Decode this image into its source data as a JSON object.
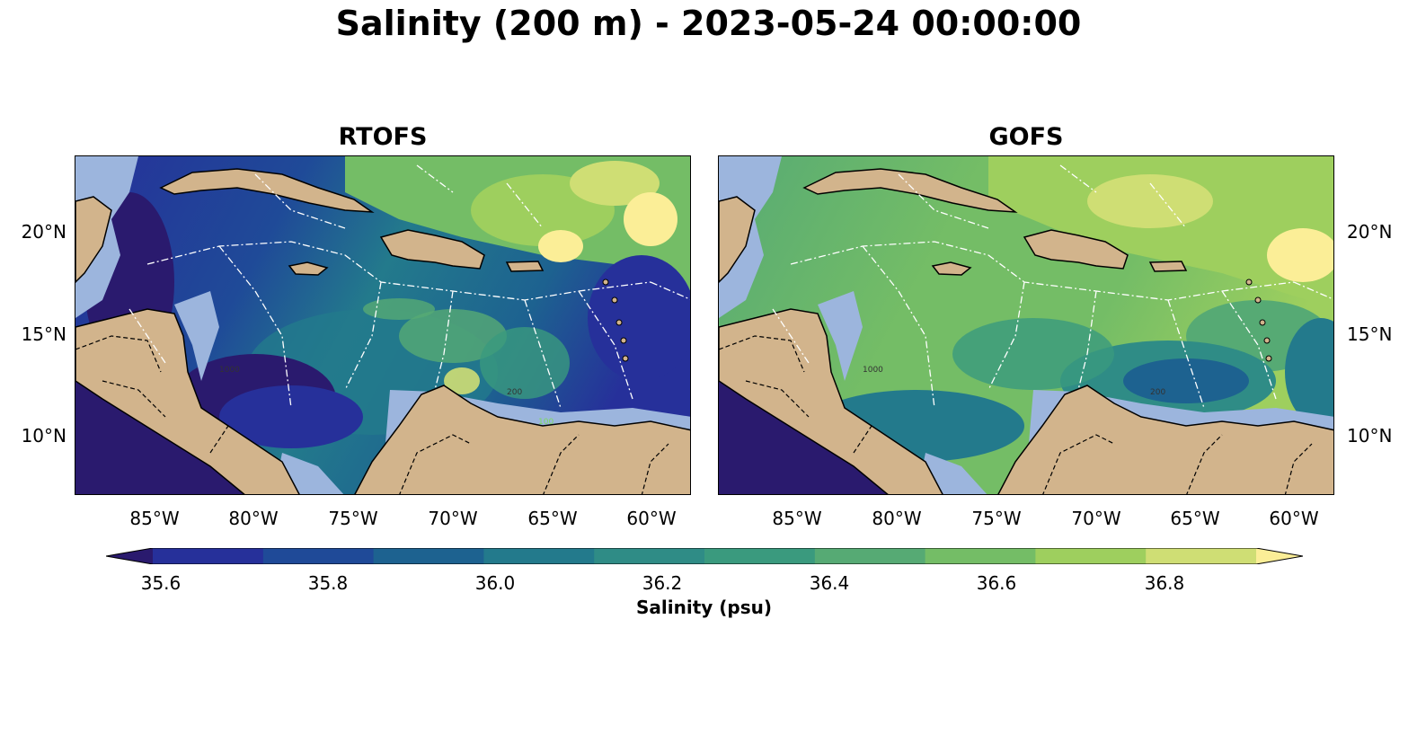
{
  "title": "Salinity (200 m) - 2023-05-24 00:00:00",
  "panels": [
    {
      "name": "RTOFS",
      "variant": "low"
    },
    {
      "name": "GOFS",
      "variant": "high"
    }
  ],
  "lat_ticks": [
    "20°N",
    "15°N",
    "10°N"
  ],
  "lon_ticks": [
    "85°W",
    "80°W",
    "75°W",
    "70°W",
    "65°W",
    "60°W"
  ],
  "colorbar": {
    "label": "Salinity (psu)",
    "ticks": [
      "35.6",
      "35.8",
      "36.0",
      "36.2",
      "36.4",
      "36.6",
      "36.8"
    ],
    "colors": [
      "#2a1a6e",
      "#26309a",
      "#1f4a98",
      "#1d6290",
      "#237a8c",
      "#2f8c86",
      "#3a9a7e",
      "#56aa74",
      "#74bd66",
      "#9ecf5e",
      "#cfde74",
      "#fbee97"
    ]
  },
  "map_colors": {
    "land": "#d2b48c",
    "shelf": "#9cb5dd",
    "pacific": "#2a1a6e"
  },
  "contour_labels": [
    "1000",
    "200",
    "100"
  ]
}
